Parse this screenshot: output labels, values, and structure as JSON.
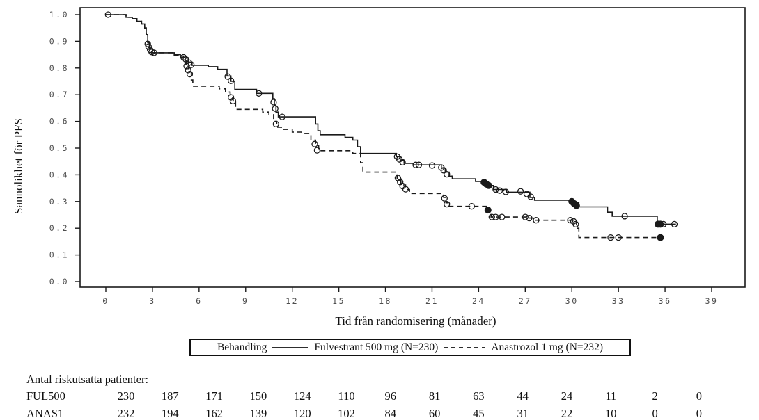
{
  "figure": {
    "background": "#ffffff",
    "line_color": "#1a1a1a",
    "tick_label_color": "#4d4d4d"
  },
  "chart_data": {
    "type": "line",
    "subtype": "kaplan-meier-step",
    "title": "",
    "xlabel": "Tid från randomisering (månader)",
    "ylabel": "Sannolikhet för PFS",
    "xlim": [
      0,
      39
    ],
    "ylim": [
      0.0,
      1.0
    ],
    "grid": false,
    "legend_position": "bottom",
    "x_ticks": [
      0,
      3,
      6,
      9,
      12,
      15,
      18,
      21,
      24,
      27,
      30,
      33,
      36,
      39
    ],
    "y_ticks": [
      0.0,
      0.1,
      0.2,
      0.3,
      0.4,
      0.5,
      0.6,
      0.7,
      0.8,
      0.9,
      1.0
    ],
    "series": [
      {
        "name": "Fulvestrant 500 mg (N=230)",
        "style": "solid",
        "steps": [
          [
            0,
            1.0
          ],
          [
            1.3,
            0.99
          ],
          [
            1.7,
            0.985
          ],
          [
            2.0,
            0.975
          ],
          [
            2.3,
            0.965
          ],
          [
            2.5,
            0.95
          ],
          [
            2.6,
            0.925
          ],
          [
            2.7,
            0.895
          ],
          [
            2.8,
            0.872
          ],
          [
            3.0,
            0.857
          ],
          [
            4.4,
            0.85
          ],
          [
            4.8,
            0.845
          ],
          [
            5.0,
            0.838
          ],
          [
            5.3,
            0.822
          ],
          [
            5.55,
            0.81
          ],
          [
            6.6,
            0.805
          ],
          [
            7.2,
            0.795
          ],
          [
            7.8,
            0.77
          ],
          [
            8.05,
            0.75
          ],
          [
            8.3,
            0.72
          ],
          [
            9.7,
            0.705
          ],
          [
            10.75,
            0.685
          ],
          [
            10.85,
            0.66
          ],
          [
            10.95,
            0.635
          ],
          [
            11.1,
            0.617
          ],
          [
            13.5,
            0.59
          ],
          [
            13.65,
            0.565
          ],
          [
            13.8,
            0.55
          ],
          [
            15.4,
            0.54
          ],
          [
            15.9,
            0.53
          ],
          [
            16.2,
            0.505
          ],
          [
            16.4,
            0.48
          ],
          [
            18.7,
            0.468
          ],
          [
            18.95,
            0.455
          ],
          [
            19.2,
            0.443
          ],
          [
            19.8,
            0.437
          ],
          [
            21.6,
            0.425
          ],
          [
            21.85,
            0.41
          ],
          [
            22.1,
            0.395
          ],
          [
            22.3,
            0.385
          ],
          [
            23.8,
            0.375
          ],
          [
            24.6,
            0.36
          ],
          [
            24.95,
            0.345
          ],
          [
            25.8,
            0.335
          ],
          [
            27.3,
            0.315
          ],
          [
            27.6,
            0.305
          ],
          [
            30.1,
            0.295
          ],
          [
            30.45,
            0.28
          ],
          [
            32.3,
            0.26
          ],
          [
            32.6,
            0.245
          ],
          [
            35.5,
            0.215
          ],
          [
            36.7,
            0.215
          ]
        ],
        "censor_open": [
          [
            0.15,
            1.0
          ],
          [
            2.75,
            0.88
          ],
          [
            2.85,
            0.868
          ],
          [
            2.95,
            0.86
          ],
          [
            3.1,
            0.857
          ],
          [
            5.0,
            0.84
          ],
          [
            5.15,
            0.832
          ],
          [
            5.35,
            0.82
          ],
          [
            5.5,
            0.812
          ],
          [
            7.85,
            0.768
          ],
          [
            8.05,
            0.752
          ],
          [
            9.85,
            0.705
          ],
          [
            10.8,
            0.672
          ],
          [
            10.9,
            0.648
          ],
          [
            11.35,
            0.617
          ],
          [
            18.75,
            0.468
          ],
          [
            18.9,
            0.458
          ],
          [
            19.1,
            0.447
          ],
          [
            19.95,
            0.437
          ],
          [
            20.15,
            0.437
          ],
          [
            21.0,
            0.435
          ],
          [
            21.6,
            0.427
          ],
          [
            21.75,
            0.417
          ],
          [
            21.95,
            0.402
          ],
          [
            25.1,
            0.345
          ],
          [
            25.35,
            0.341
          ],
          [
            25.75,
            0.336
          ],
          [
            26.7,
            0.338
          ],
          [
            27.1,
            0.328
          ],
          [
            27.35,
            0.318
          ],
          [
            33.4,
            0.245
          ],
          [
            35.9,
            0.215
          ],
          [
            36.6,
            0.215
          ]
        ],
        "censor_filled": [
          [
            24.35,
            0.372
          ],
          [
            24.5,
            0.365
          ],
          [
            24.65,
            0.36
          ],
          [
            30.0,
            0.3
          ],
          [
            30.15,
            0.292
          ],
          [
            30.3,
            0.285
          ],
          [
            35.55,
            0.215
          ],
          [
            35.7,
            0.215
          ]
        ]
      },
      {
        "name": "Anastrozol 1 mg (N=232)",
        "style": "dashed",
        "steps": [
          [
            0,
            1.0
          ],
          [
            1.3,
            0.99
          ],
          [
            1.7,
            0.985
          ],
          [
            2.0,
            0.975
          ],
          [
            2.3,
            0.965
          ],
          [
            2.5,
            0.95
          ],
          [
            2.6,
            0.925
          ],
          [
            2.7,
            0.895
          ],
          [
            2.8,
            0.872
          ],
          [
            3.0,
            0.857
          ],
          [
            4.4,
            0.848
          ],
          [
            4.8,
            0.84
          ],
          [
            5.15,
            0.805
          ],
          [
            5.35,
            0.785
          ],
          [
            5.5,
            0.755
          ],
          [
            5.6,
            0.732
          ],
          [
            7.3,
            0.722
          ],
          [
            7.7,
            0.71
          ],
          [
            8.0,
            0.69
          ],
          [
            8.2,
            0.672
          ],
          [
            8.35,
            0.645
          ],
          [
            10.1,
            0.635
          ],
          [
            10.5,
            0.625
          ],
          [
            10.8,
            0.6
          ],
          [
            11.0,
            0.578
          ],
          [
            11.3,
            0.57
          ],
          [
            12.0,
            0.56
          ],
          [
            12.6,
            0.555
          ],
          [
            13.2,
            0.53
          ],
          [
            13.5,
            0.51
          ],
          [
            13.7,
            0.49
          ],
          [
            15.9,
            0.48
          ],
          [
            16.4,
            0.445
          ],
          [
            16.55,
            0.41
          ],
          [
            18.75,
            0.385
          ],
          [
            19.0,
            0.362
          ],
          [
            19.3,
            0.345
          ],
          [
            19.55,
            0.33
          ],
          [
            21.75,
            0.315
          ],
          [
            21.9,
            0.295
          ],
          [
            22.1,
            0.282
          ],
          [
            24.55,
            0.265
          ],
          [
            24.8,
            0.242
          ],
          [
            27.2,
            0.238
          ],
          [
            27.6,
            0.23
          ],
          [
            30.3,
            0.2
          ],
          [
            30.45,
            0.165
          ],
          [
            35.7,
            0.165
          ]
        ],
        "censor_open": [
          [
            2.7,
            0.89
          ],
          [
            5.2,
            0.807
          ],
          [
            5.3,
            0.792
          ],
          [
            5.4,
            0.777
          ],
          [
            8.05,
            0.69
          ],
          [
            8.18,
            0.676
          ],
          [
            10.95,
            0.59
          ],
          [
            13.45,
            0.515
          ],
          [
            13.6,
            0.492
          ],
          [
            18.8,
            0.388
          ],
          [
            18.95,
            0.373
          ],
          [
            19.1,
            0.358
          ],
          [
            19.3,
            0.346
          ],
          [
            21.8,
            0.312
          ],
          [
            21.95,
            0.29
          ],
          [
            23.55,
            0.282
          ],
          [
            24.85,
            0.242
          ],
          [
            25.1,
            0.242
          ],
          [
            25.5,
            0.242
          ],
          [
            27.0,
            0.242
          ],
          [
            27.25,
            0.238
          ],
          [
            27.7,
            0.23
          ],
          [
            29.9,
            0.23
          ],
          [
            30.1,
            0.226
          ],
          [
            30.25,
            0.215
          ],
          [
            32.5,
            0.165
          ],
          [
            33.0,
            0.165
          ]
        ],
        "censor_filled": [
          [
            24.6,
            0.268
          ],
          [
            35.7,
            0.165
          ]
        ]
      }
    ]
  },
  "legend": {
    "title": "Behandling",
    "series1": "Fulvestrant 500 mg (N=230)",
    "series2": "Anastrozol 1 mg (N=232)"
  },
  "risk_table": {
    "title": "Antal riskutsatta patienter:",
    "rows": [
      {
        "label": "FUL500",
        "counts": [
          230,
          187,
          171,
          150,
          124,
          110,
          96,
          81,
          63,
          44,
          24,
          11,
          2,
          0
        ]
      },
      {
        "label": "ANAS1",
        "counts": [
          232,
          194,
          162,
          139,
          120,
          102,
          84,
          60,
          45,
          31,
          22,
          10,
          0,
          0
        ]
      }
    ]
  }
}
